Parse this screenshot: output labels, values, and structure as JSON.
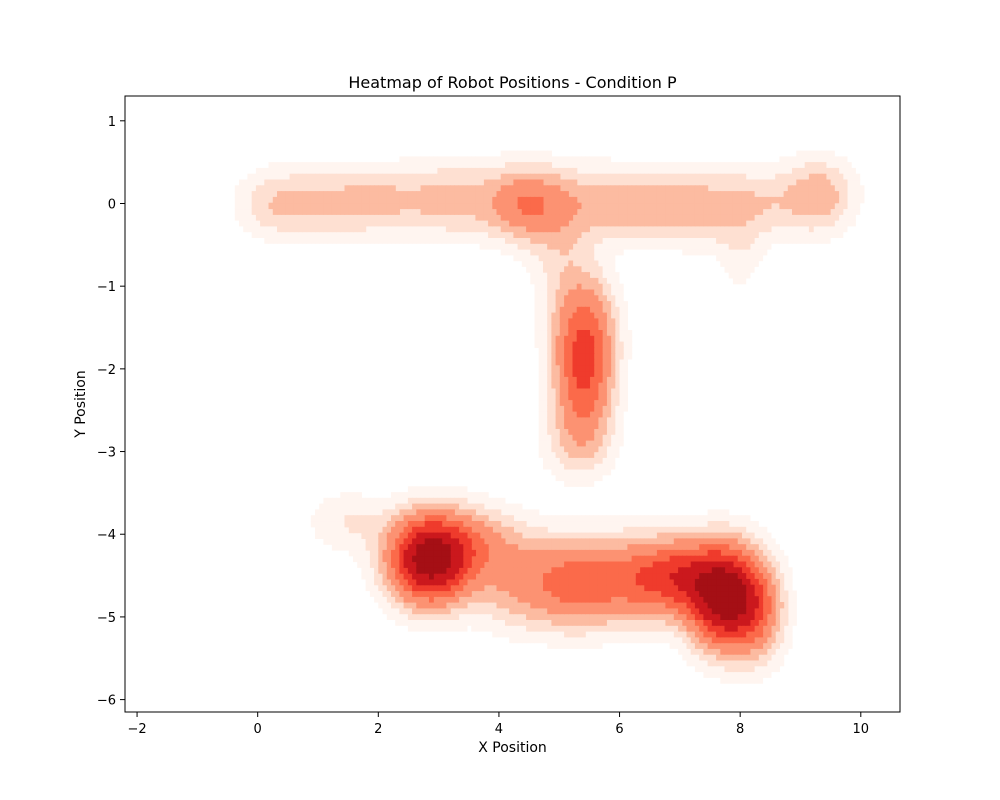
{
  "chart_data": {
    "type": "heatmap",
    "subtype": "kde-density-contour",
    "title": "Heatmap of Robot Positions - Condition P",
    "xlabel": "X Position",
    "ylabel": "Y Position",
    "xlim": [
      -2.2,
      10.65
    ],
    "ylim": [
      -6.15,
      1.3
    ],
    "xticks": [
      -2,
      0,
      2,
      4,
      6,
      8,
      10
    ],
    "yticks": [
      1,
      0,
      -1,
      -2,
      -3,
      -4,
      -5,
      -6
    ],
    "xtick_labels": [
      "−2",
      "0",
      "2",
      "4",
      "6",
      "8",
      "10"
    ],
    "ytick_labels": [
      "1",
      "0",
      "−1",
      "−2",
      "−3",
      "−4",
      "−5",
      "−6"
    ],
    "colormap": "Reds",
    "levels": 9,
    "grid": false,
    "legend": false,
    "density_regions": [
      {
        "name": "top-horizontal-band",
        "x_range": [
          -0.5,
          10.1
        ],
        "y_range": [
          -1.0,
          0.6
        ],
        "peak": [
          4.45,
          0.0
        ],
        "relative_intensity": 0.25
      },
      {
        "name": "vertical-stem",
        "x_range": [
          4.3,
          6.4
        ],
        "y_range": [
          -3.2,
          -0.3
        ],
        "peak": [
          5.45,
          -1.9
        ],
        "relative_intensity": 0.5
      },
      {
        "name": "bottom-left-cluster",
        "x_range": [
          1.0,
          4.2
        ],
        "y_range": [
          -5.5,
          -3.4
        ],
        "peak": [
          2.85,
          -4.3
        ],
        "relative_intensity": 1.0
      },
      {
        "name": "bottom-right-cluster",
        "x_range": [
          6.2,
          8.9
        ],
        "y_range": [
          -5.6,
          -3.9
        ],
        "peak": [
          7.75,
          -4.75
        ],
        "relative_intensity": 1.0
      },
      {
        "name": "bottom-bridge",
        "x_range": [
          3.5,
          6.5
        ],
        "y_range": [
          -5.5,
          -3.9
        ],
        "peak": [
          5.3,
          -4.6
        ],
        "relative_intensity": 0.4
      }
    ],
    "colors": [
      "#fff5f0",
      "#fee0d2",
      "#fcbba1",
      "#fc9272",
      "#fb6a4a",
      "#ef3b2c",
      "#cb181d",
      "#a50f15"
    ]
  }
}
